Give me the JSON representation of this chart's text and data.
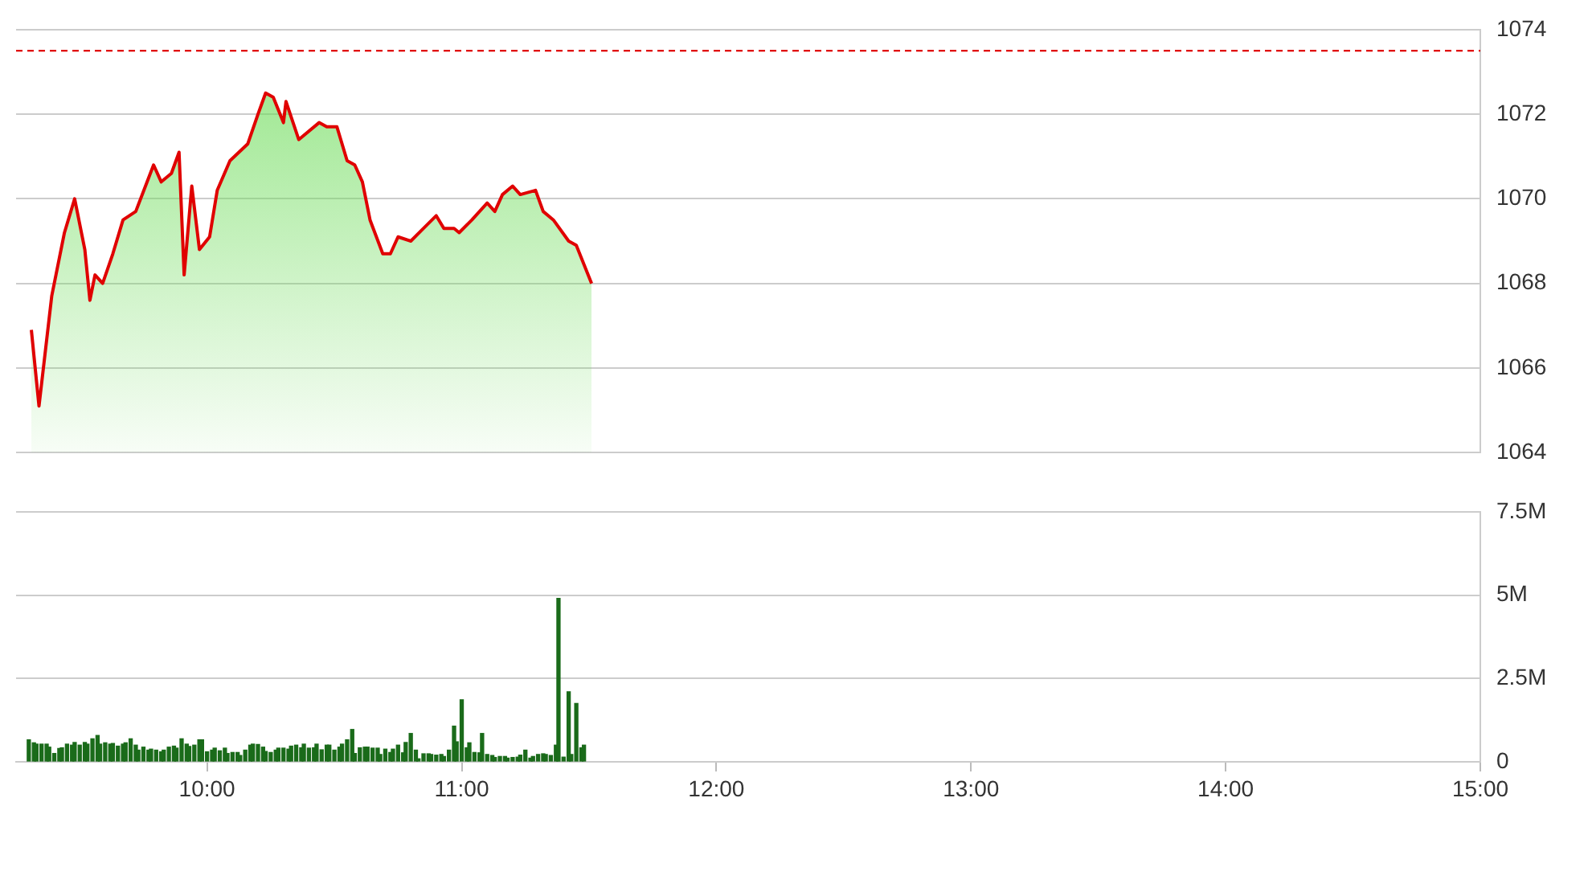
{
  "chart_data": [
    {
      "type": "area",
      "x": [
        9.31,
        9.34,
        9.39,
        9.44,
        9.48,
        9.52,
        9.54,
        9.56,
        9.59,
        9.63,
        9.67,
        9.72,
        9.79,
        9.82,
        9.86,
        9.89,
        9.91,
        9.94,
        9.97,
        10.01,
        10.04,
        10.09,
        10.16,
        10.2,
        10.23,
        10.26,
        10.3,
        10.31,
        10.36,
        10.44,
        10.47,
        10.51,
        10.55,
        10.58,
        10.61,
        10.64,
        10.69,
        10.72,
        10.75,
        10.8,
        10.85,
        10.9,
        10.93,
        10.97,
        10.99,
        11.04,
        11.1,
        11.13,
        11.16,
        11.2,
        11.23,
        11.29,
        11.32,
        11.36,
        11.42,
        11.45,
        11.51
      ],
      "series": [
        {
          "color": "#e00000",
          "values": [
            1066.9,
            1065.1,
            1067.7,
            1069.2,
            1070.0,
            1068.8,
            1067.6,
            1068.2,
            1068.0,
            1068.7,
            1069.5,
            1069.7,
            1070.8,
            1070.4,
            1070.6,
            1071.1,
            1068.2,
            1070.3,
            1068.8,
            1069.1,
            1070.2,
            1070.9,
            1071.3,
            1072.0,
            1072.5,
            1072.4,
            1071.8,
            1072.3,
            1071.4,
            1071.8,
            1071.7,
            1071.7,
            1070.9,
            1070.8,
            1070.4,
            1069.5,
            1068.7,
            1068.7,
            1069.1,
            1069.0,
            1069.3,
            1069.6,
            1069.3,
            1069.3,
            1069.2,
            1069.5,
            1069.9,
            1069.7,
            1070.1,
            1070.3,
            1070.1,
            1070.2,
            1069.7,
            1069.5,
            1069.0,
            1068.9,
            1068.0
          ]
        }
      ],
      "xlim": [
        9.25,
        15
      ],
      "ylim": [
        1064,
        1074
      ],
      "yticks": [
        1064,
        1066,
        1068,
        1070,
        1072,
        1074
      ],
      "tick_labels": "y",
      "grid": "y",
      "legend": false,
      "ref_lines": [
        {
          "axis": "y",
          "value": 1073.5,
          "color": "#e00000",
          "line_style": "dashed"
        }
      ]
    },
    {
      "type": "bar",
      "x": [
        9.3,
        9.32,
        9.33,
        9.35,
        9.37,
        9.38,
        9.4,
        9.42,
        9.43,
        9.45,
        9.47,
        9.48,
        9.5,
        9.52,
        9.53,
        9.55,
        9.57,
        9.58,
        9.6,
        9.62,
        9.63,
        9.65,
        9.67,
        9.68,
        9.7,
        9.72,
        9.73,
        9.75,
        9.77,
        9.78,
        9.8,
        9.82,
        9.83,
        9.85,
        9.87,
        9.88,
        9.9,
        9.92,
        9.93,
        9.95,
        9.97,
        9.98,
        10.0,
        10.02,
        10.03,
        10.05,
        10.07,
        10.08,
        10.1,
        10.12,
        10.13,
        10.15,
        10.17,
        10.18,
        10.2,
        10.22,
        10.23,
        10.25,
        10.27,
        10.28,
        10.3,
        10.32,
        10.33,
        10.35,
        10.37,
        10.38,
        10.4,
        10.42,
        10.43,
        10.45,
        10.47,
        10.48,
        10.5,
        10.52,
        10.53,
        10.55,
        10.57,
        10.58,
        10.6,
        10.62,
        10.63,
        10.65,
        10.67,
        10.68,
        10.7,
        10.72,
        10.73,
        10.75,
        10.77,
        10.78,
        10.8,
        10.82,
        10.83,
        10.85,
        10.87,
        10.88,
        10.9,
        10.92,
        10.93,
        10.95,
        10.97,
        10.98,
        11.0,
        11.02,
        11.03,
        11.05,
        11.07,
        11.08,
        11.1,
        11.12,
        11.13,
        11.15,
        11.17,
        11.18,
        11.2,
        11.22,
        11.23,
        11.25,
        11.27,
        11.28,
        11.3,
        11.32,
        11.33,
        11.35,
        11.37,
        11.38,
        11.4,
        11.42,
        11.43,
        11.45,
        11.47,
        11.48
      ],
      "series": [
        {
          "color": "#1a6b1a",
          "values": [
            0.66,
            0.57,
            0.53,
            0.53,
            0.53,
            0.44,
            0.25,
            0.4,
            0.42,
            0.53,
            0.5,
            0.58,
            0.5,
            0.58,
            0.53,
            0.69,
            0.79,
            0.53,
            0.57,
            0.53,
            0.55,
            0.47,
            0.53,
            0.57,
            0.69,
            0.5,
            0.35,
            0.44,
            0.35,
            0.38,
            0.35,
            0.3,
            0.35,
            0.44,
            0.47,
            0.41,
            0.69,
            0.53,
            0.46,
            0.5,
            0.66,
            0.66,
            0.3,
            0.35,
            0.41,
            0.33,
            0.41,
            0.25,
            0.28,
            0.28,
            0.19,
            0.35,
            0.5,
            0.53,
            0.52,
            0.44,
            0.31,
            0.28,
            0.35,
            0.41,
            0.41,
            0.38,
            0.47,
            0.5,
            0.42,
            0.53,
            0.41,
            0.42,
            0.53,
            0.36,
            0.5,
            0.5,
            0.35,
            0.44,
            0.53,
            0.66,
            0.97,
            0.25,
            0.42,
            0.44,
            0.44,
            0.41,
            0.41,
            0.22,
            0.38,
            0.28,
            0.38,
            0.5,
            0.27,
            0.58,
            0.85,
            0.35,
            0.09,
            0.24,
            0.24,
            0.22,
            0.2,
            0.22,
            0.16,
            0.35,
            1.07,
            0.6,
            1.86,
            0.42,
            0.57,
            0.28,
            0.27,
            0.85,
            0.22,
            0.19,
            0.13,
            0.16,
            0.16,
            0.11,
            0.13,
            0.14,
            0.2,
            0.35,
            0.11,
            0.16,
            0.22,
            0.24,
            0.22,
            0.19,
            0.5,
            4.9,
            0.14,
            2.1,
            0.22,
            1.75,
            0.42,
            0.5
          ]
        }
      ],
      "xlim": [
        9.25,
        15
      ],
      "xticks": [
        {
          "value": 10,
          "label": "10:00"
        },
        {
          "value": 11,
          "label": "11:00"
        },
        {
          "value": 12,
          "label": "12:00"
        },
        {
          "value": 13,
          "label": "13:00"
        },
        {
          "value": 14,
          "label": "14:00"
        },
        {
          "value": 15,
          "label": "15:00"
        }
      ],
      "ylim": [
        0,
        7.5
      ],
      "yticks": [
        0,
        {
          "value": 2.5,
          "label": "2.5M"
        },
        {
          "value": 5,
          "label": "5M"
        },
        {
          "value": 7.5,
          "label": "7.5M"
        }
      ],
      "grid": "y",
      "legend": false
    }
  ]
}
